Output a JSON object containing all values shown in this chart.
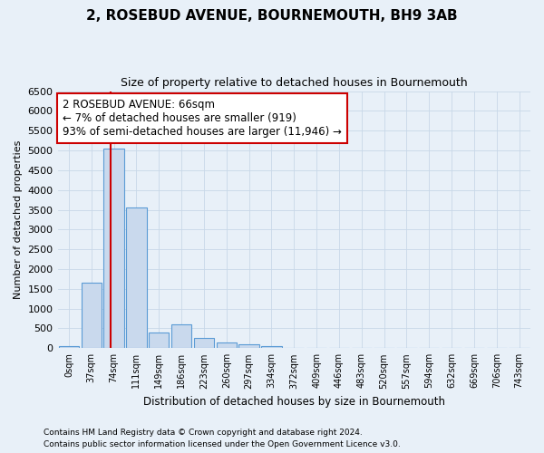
{
  "title": "2, ROSEBUD AVENUE, BOURNEMOUTH, BH9 3AB",
  "subtitle": "Size of property relative to detached houses in Bournemouth",
  "xlabel": "Distribution of detached houses by size in Bournemouth",
  "ylabel": "Number of detached properties",
  "footer_line1": "Contains HM Land Registry data © Crown copyright and database right 2024.",
  "footer_line2": "Contains public sector information licensed under the Open Government Licence v3.0.",
  "bar_labels": [
    "0sqm",
    "37sqm",
    "74sqm",
    "111sqm",
    "149sqm",
    "186sqm",
    "223sqm",
    "260sqm",
    "297sqm",
    "334sqm",
    "372sqm",
    "409sqm",
    "446sqm",
    "483sqm",
    "520sqm",
    "557sqm",
    "594sqm",
    "632sqm",
    "669sqm",
    "706sqm",
    "743sqm"
  ],
  "bar_values": [
    50,
    1650,
    5050,
    3550,
    400,
    600,
    260,
    150,
    100,
    55,
    0,
    0,
    0,
    0,
    0,
    0,
    0,
    0,
    0,
    0,
    0
  ],
  "bar_color": "#c9d9ed",
  "bar_edgecolor": "#5b9bd5",
  "vline_x": 1.85,
  "vline_color": "#cc0000",
  "ylim": [
    0,
    6500
  ],
  "yticks": [
    0,
    500,
    1000,
    1500,
    2000,
    2500,
    3000,
    3500,
    4000,
    4500,
    5000,
    5500,
    6000,
    6500
  ],
  "annotation_text": "2 ROSEBUD AVENUE: 66sqm\n← 7% of detached houses are smaller (919)\n93% of semi-detached houses are larger (11,946) →",
  "annotation_box_facecolor": "#ffffff",
  "annotation_box_edgecolor": "#cc0000",
  "bg_color": "#e8f0f8",
  "plot_bg_color": "#e8f0f8",
  "grid_color": "#c8d8e8"
}
